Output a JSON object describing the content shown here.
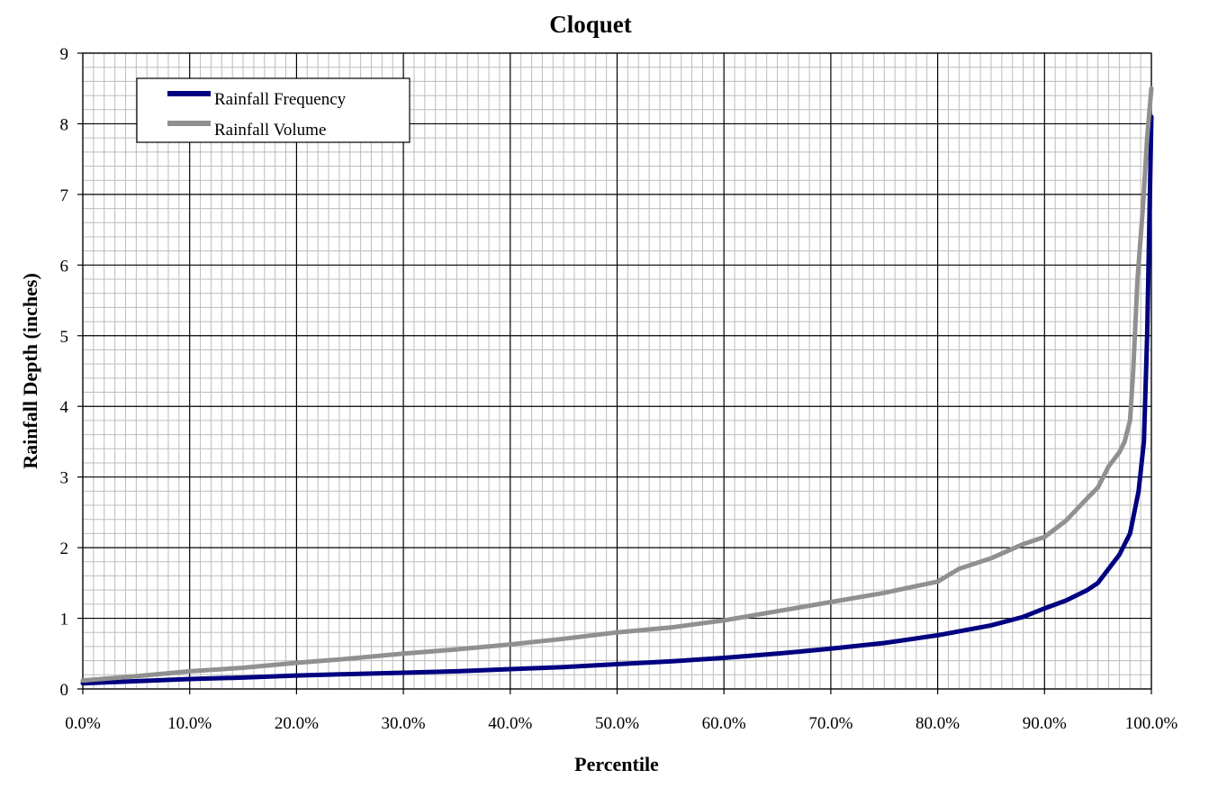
{
  "chart_data": {
    "type": "line",
    "title": "Cloquet",
    "xlabel": "Percentile",
    "ylabel": "Rainfall Depth (inches)",
    "xlim": [
      0,
      100
    ],
    "ylim": [
      0,
      9
    ],
    "x_ticks": [
      0,
      10,
      20,
      30,
      40,
      50,
      60,
      70,
      80,
      90,
      100
    ],
    "x_tick_labels": [
      "0.0%",
      "10.0%",
      "20.0%",
      "30.0%",
      "40.0%",
      "50.0%",
      "60.0%",
      "70.0%",
      "80.0%",
      "90.0%",
      "100.0%"
    ],
    "y_ticks": [
      0,
      1,
      2,
      3,
      4,
      5,
      6,
      7,
      8,
      9
    ],
    "y_tick_labels": [
      "0",
      "1",
      "2",
      "3",
      "4",
      "5",
      "6",
      "7",
      "8",
      "9"
    ],
    "grid": true,
    "legend_position": "top-left",
    "series": [
      {
        "name": "Rainfall Frequency",
        "color": "#000080",
        "points": [
          [
            0,
            0.08
          ],
          [
            5,
            0.11
          ],
          [
            10,
            0.14
          ],
          [
            15,
            0.16
          ],
          [
            20,
            0.19
          ],
          [
            25,
            0.21
          ],
          [
            30,
            0.23
          ],
          [
            35,
            0.25
          ],
          [
            40,
            0.28
          ],
          [
            45,
            0.31
          ],
          [
            50,
            0.35
          ],
          [
            55,
            0.39
          ],
          [
            60,
            0.44
          ],
          [
            65,
            0.5
          ],
          [
            70,
            0.57
          ],
          [
            75,
            0.65
          ],
          [
            80,
            0.76
          ],
          [
            85,
            0.9
          ],
          [
            88,
            1.02
          ],
          [
            90,
            1.14
          ],
          [
            92,
            1.25
          ],
          [
            94,
            1.4
          ],
          [
            95,
            1.5
          ],
          [
            96,
            1.7
          ],
          [
            97,
            1.9
          ],
          [
            98,
            2.2
          ],
          [
            98.8,
            2.8
          ],
          [
            99.3,
            3.5
          ],
          [
            99.6,
            5.0
          ],
          [
            99.8,
            6.5
          ],
          [
            100,
            8.1
          ]
        ]
      },
      {
        "name": "Rainfall Volume",
        "color": "#909090",
        "points": [
          [
            0,
            0.12
          ],
          [
            5,
            0.18
          ],
          [
            10,
            0.25
          ],
          [
            15,
            0.3
          ],
          [
            20,
            0.37
          ],
          [
            25,
            0.43
          ],
          [
            30,
            0.5
          ],
          [
            35,
            0.56
          ],
          [
            40,
            0.63
          ],
          [
            45,
            0.71
          ],
          [
            50,
            0.8
          ],
          [
            55,
            0.87
          ],
          [
            60,
            0.97
          ],
          [
            65,
            1.1
          ],
          [
            70,
            1.23
          ],
          [
            75,
            1.36
          ],
          [
            80,
            1.52
          ],
          [
            82,
            1.7
          ],
          [
            85,
            1.85
          ],
          [
            88,
            2.05
          ],
          [
            90,
            2.15
          ],
          [
            92,
            2.38
          ],
          [
            94,
            2.7
          ],
          [
            95,
            2.85
          ],
          [
            96,
            3.15
          ],
          [
            97,
            3.35
          ],
          [
            97.5,
            3.5
          ],
          [
            98,
            3.8
          ],
          [
            98.3,
            4.5
          ],
          [
            98.7,
            5.8
          ],
          [
            99.2,
            6.8
          ],
          [
            99.6,
            7.8
          ],
          [
            100,
            8.5
          ]
        ]
      }
    ]
  }
}
